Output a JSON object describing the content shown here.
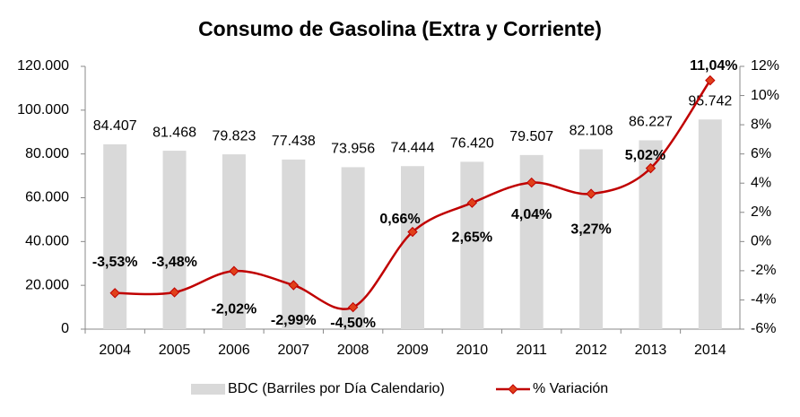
{
  "chart_data": {
    "type": "bar-line",
    "title": "Consumo de Gasolina (Extra y Corriente)",
    "categories": [
      "2004",
      "2005",
      "2006",
      "2007",
      "2008",
      "2009",
      "2010",
      "2011",
      "2012",
      "2013",
      "2014"
    ],
    "series": [
      {
        "name": "BDC (Barriles por Día Calendario)",
        "type": "bar",
        "color": "#d9d9d9",
        "values": [
          84407,
          81468,
          79823,
          77438,
          73956,
          74444,
          76420,
          79507,
          82108,
          86227,
          95742
        ],
        "value_labels": [
          "84.407",
          "81.468",
          "79.823",
          "77.438",
          "73.956",
          "74.444",
          "76.420",
          "79.507",
          "82.108",
          "86.227",
          "95.742"
        ]
      },
      {
        "name": "% Variación",
        "type": "line",
        "axis": "y2",
        "color": "#c00000",
        "values": [
          -3.53,
          -3.48,
          -2.02,
          -2.99,
          -4.5,
          0.66,
          2.65,
          4.04,
          3.27,
          5.02,
          11.04
        ],
        "value_labels": [
          "-3,53%",
          "-3,48%",
          "-2,02%",
          "-2,99%",
          "-4,50%",
          "0,66%",
          "2,65%",
          "4,04%",
          "3,27%",
          "5,02%",
          "11,04%"
        ]
      }
    ],
    "ylim": [
      0,
      120000
    ],
    "yticks": [
      0,
      {
        "value": 20000,
        "label": "20.000"
      },
      {
        "value": 40000,
        "label": "40.000"
      },
      {
        "value": 60000,
        "label": "60.000"
      },
      {
        "value": 80000,
        "label": "80.000"
      },
      {
        "value": 100000,
        "label": "100.000"
      },
      {
        "value": 120000,
        "label": "120.000"
      }
    ],
    "y2lim": [
      -6,
      12
    ],
    "y2ticks": [
      {
        "value": -6,
        "label": "-6%"
      },
      {
        "value": -4,
        "label": "-4%"
      },
      {
        "value": -2,
        "label": "-2%"
      },
      {
        "value": 0,
        "label": "0%"
      },
      {
        "value": 2,
        "label": "2%"
      },
      {
        "value": 4,
        "label": "4%"
      },
      {
        "value": 6,
        "label": "6%"
      },
      {
        "value": 8,
        "label": "8%"
      },
      {
        "value": 10,
        "label": "10%"
      },
      {
        "value": 12,
        "label": "12%"
      }
    ],
    "legend": "bottom"
  }
}
